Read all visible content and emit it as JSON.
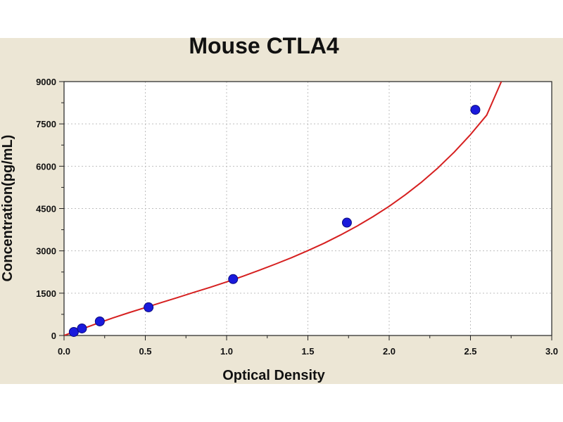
{
  "chart_data": {
    "type": "scatter",
    "title": "Mouse CTLA4",
    "xlabel": "Optical Density",
    "ylabel": "Concentration(pg/mL)",
    "xlim": [
      0,
      3.0
    ],
    "ylim": [
      0,
      9000
    ],
    "x_ticks": [
      "0.0",
      "0.5",
      "1.0",
      "1.5",
      "2.0",
      "2.5",
      "3.0"
    ],
    "y_ticks": [
      "0",
      "1500",
      "3000",
      "4500",
      "6000",
      "7500",
      "9000"
    ],
    "grid": true,
    "colors": {
      "points": "#1a1adc",
      "curve": "#d62020",
      "panel": "#ece6d5",
      "plot_area": "#ffffff",
      "grid": "#bfbfbf"
    },
    "series": [
      {
        "points": [
          {
            "x": 0.06,
            "y": 125
          },
          {
            "x": 0.11,
            "y": 250
          },
          {
            "x": 0.22,
            "y": 500
          },
          {
            "x": 0.52,
            "y": 1000
          },
          {
            "x": 1.04,
            "y": 2000
          },
          {
            "x": 1.74,
            "y": 4000
          },
          {
            "x": 2.53,
            "y": 8000
          }
        ]
      }
    ],
    "fit_curve": {
      "x": [
        0.0,
        0.1,
        0.2,
        0.3,
        0.4,
        0.5,
        0.6,
        0.7,
        0.8,
        0.9,
        1.0,
        1.1,
        1.2,
        1.3,
        1.4,
        1.5,
        1.6,
        1.7,
        1.8,
        1.9,
        2.0,
        2.1,
        2.2,
        2.3,
        2.4,
        2.5,
        2.6,
        2.69
      ],
      "y": [
        0,
        210,
        420,
        620,
        810,
        990,
        1170,
        1350,
        1530,
        1710,
        1900,
        2100,
        2310,
        2530,
        2760,
        3010,
        3270,
        3560,
        3870,
        4210,
        4580,
        4990,
        5440,
        5940,
        6500,
        7120,
        7810,
        9000
      ]
    }
  }
}
